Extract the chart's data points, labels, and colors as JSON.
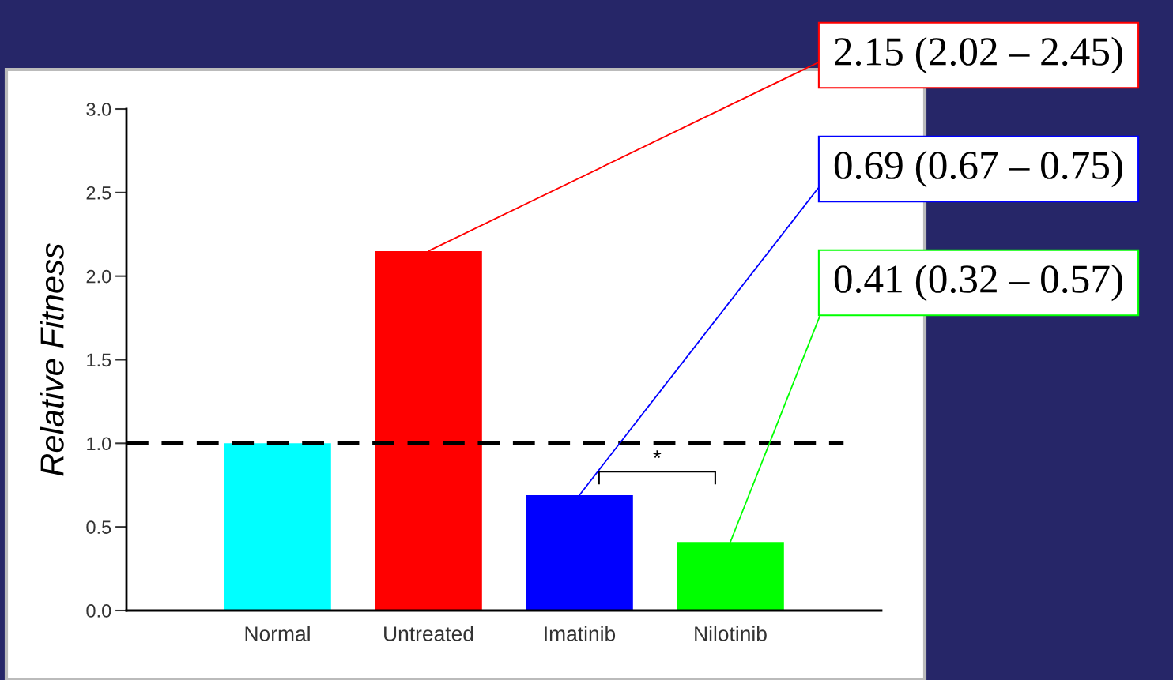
{
  "chart_data": {
    "type": "bar",
    "ylabel": "Relative Fitness",
    "categories": [
      "Normal",
      "Untreated",
      "Imatinib",
      "Nilotinib"
    ],
    "values": [
      1.0,
      2.15,
      0.69,
      0.41
    ],
    "colors": [
      "#00ffff",
      "#ff0000",
      "#0000ff",
      "#00ff00"
    ],
    "ylim": [
      0,
      3.0
    ],
    "yticks": [
      {
        "value": 0,
        "label": "0.0"
      },
      {
        "value": 0.5,
        "label": "0.5"
      },
      {
        "value": 1,
        "label": "1.0"
      },
      {
        "value": 1.5,
        "label": "1.5"
      },
      {
        "value": 2,
        "label": "2.0"
      },
      {
        "value": 2.5,
        "label": "2.5"
      },
      {
        "value": 3,
        "label": "3.0"
      }
    ],
    "ref_lines": [
      {
        "axis": "y",
        "value": 1,
        "color": "#000000",
        "line_style": "dashed"
      }
    ],
    "annotations": [
      {
        "text": "2.15 (2.02 – 2.45)",
        "x": "Untreated",
        "y": 2.15
      },
      {
        "text": "0.69 (0.67 – 0.75)",
        "x": "Imatinib",
        "y": 0.69
      },
      {
        "text": "0.41 (0.32 – 0.57)",
        "x": "Nilotinib",
        "y": 0.41
      },
      "*"
    ],
    "grid": false
  }
}
